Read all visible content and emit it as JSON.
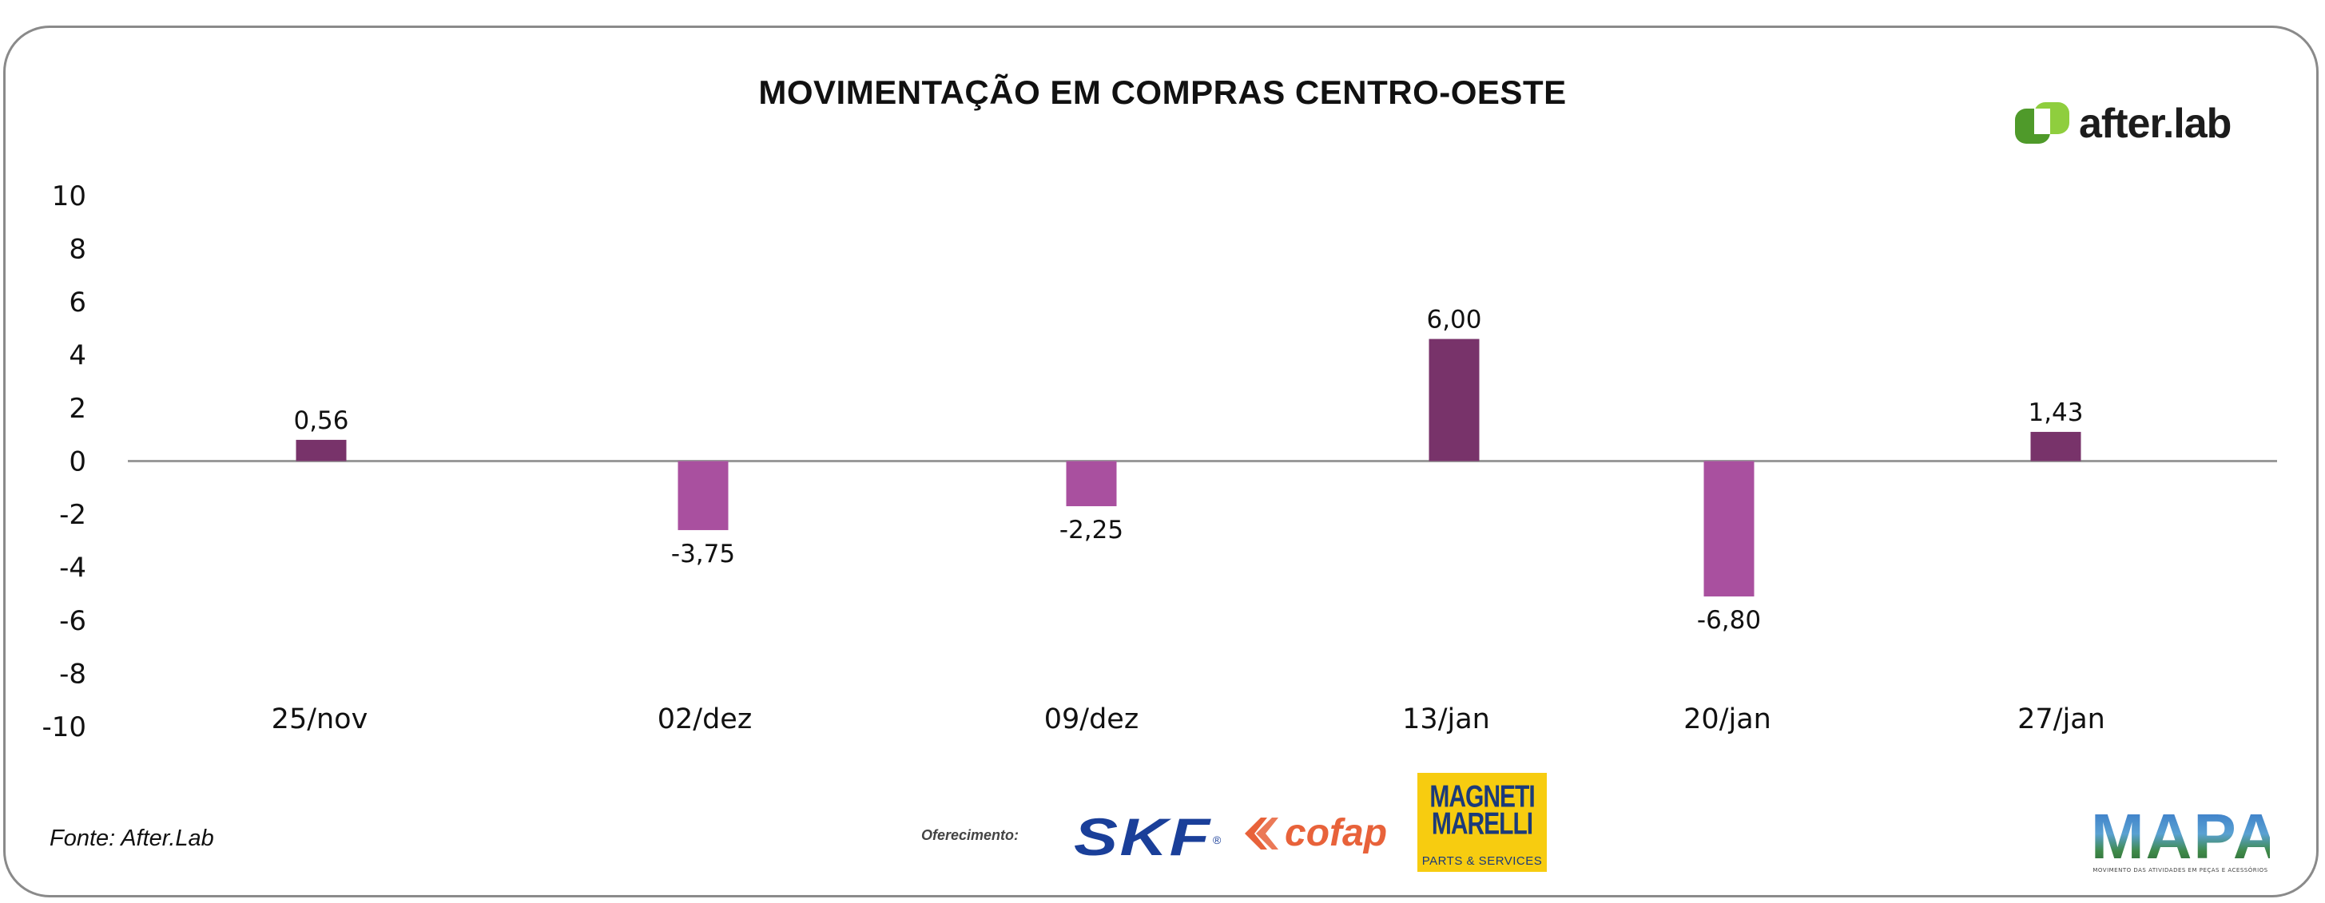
{
  "chart_data": {
    "type": "bar",
    "title": "MOVIMENTAÇÃO EM COMPRAS CENTRO-OESTE",
    "categories": [
      "25/nov",
      "02/dez",
      "09/dez",
      "13/jan",
      "20/jan",
      "27/jan"
    ],
    "values": [
      0.56,
      -3.75,
      -2.25,
      6.0,
      -6.8,
      1.43
    ],
    "data_labels": [
      "0,56",
      "-3,75",
      "-2,25",
      "6,00",
      "-6,80",
      "1,43"
    ],
    "display_values": [
      0.8,
      -2.6,
      -1.7,
      4.6,
      -5.1,
      1.1
    ],
    "ylim": [
      -10,
      10
    ],
    "yticks": [
      10,
      8,
      6,
      4,
      2,
      0,
      -2,
      -4,
      -6,
      -8,
      -10
    ],
    "xlabel": "",
    "ylabel": "",
    "grid": false,
    "legend": "none",
    "colors": {
      "positive": "#78336a",
      "negative": "#a9509f",
      "axis": "#9a9a9a"
    }
  },
  "brand": {
    "name": "after.lab",
    "colors": {
      "green_dark": "#4f9a2a",
      "green_light": "#8fce3e"
    }
  },
  "footer": {
    "source": "Fonte: After.Lab",
    "offer_label": "Oferecimento:",
    "sponsors": {
      "skf": "SKF",
      "cofap": "cofap",
      "magneti_line1": "MAGNETI",
      "magneti_line2": "MARELLI",
      "magneti_line3": "PARTS & SERVICES"
    },
    "mapa": {
      "name": "MAPA",
      "tagline": "MOVIMENTO DAS ATIVIDADES EM PEÇAS E ACESSÓRIOS"
    }
  }
}
